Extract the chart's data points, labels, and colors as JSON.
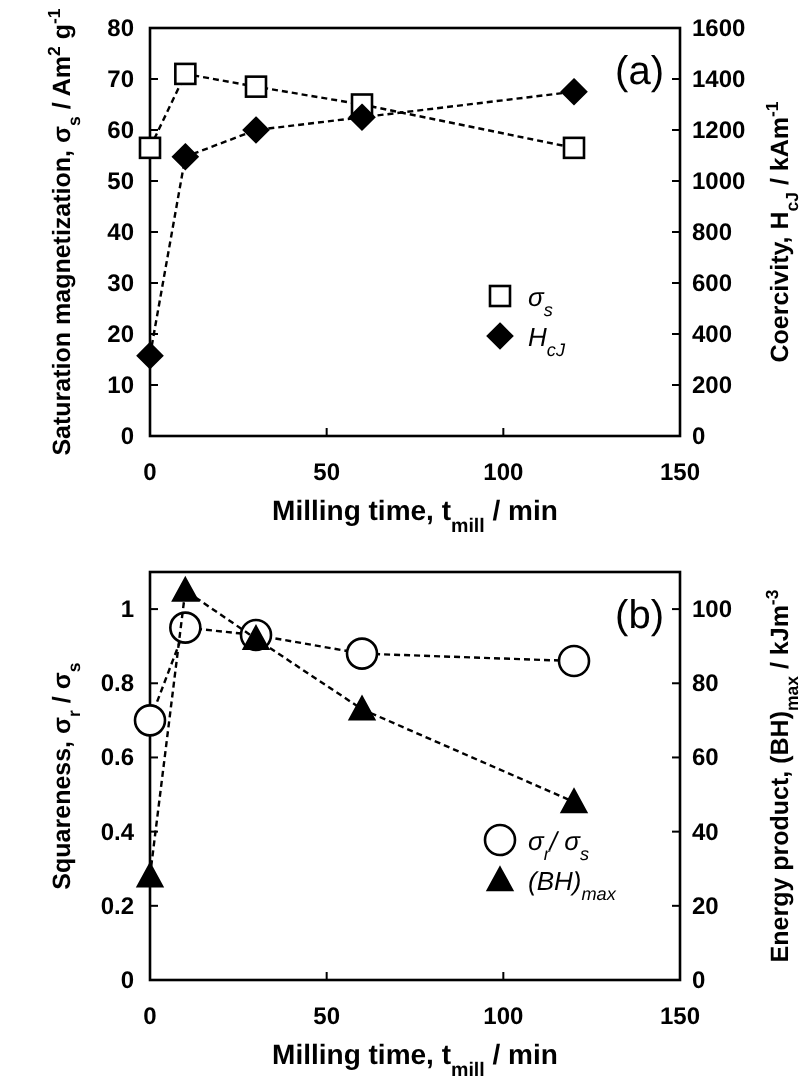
{
  "chart_data": [
    {
      "type": "line",
      "xlabel": "Milling time, t$_{mill}$ / min",
      "ylabel": "Saturation magnetization, σ$_{s}$ / Am$^{2}$ g$^{-1}$",
      "y2label": "Coercivity, H$_{cJ}$ / kAm$^{-1}$",
      "annotations": [
        "(a)"
      ],
      "x": [
        0,
        10,
        30,
        60,
        120
      ],
      "xlim": [
        0,
        150
      ],
      "xticks": [
        0,
        50,
        100,
        150
      ],
      "ylim": [
        0,
        80
      ],
      "yticks": [
        0,
        10,
        20,
        30,
        40,
        50,
        60,
        70,
        80
      ],
      "y2lim": [
        0,
        1600
      ],
      "y2ticks": [
        0,
        200,
        400,
        600,
        800,
        1000,
        1200,
        1400,
        1600
      ],
      "legend": "bottom right",
      "line_style": "dashed",
      "grid": false,
      "series": [
        {
          "name": "σ$_{s}$",
          "color": "#000000",
          "marker": "square",
          "values": [
            56.5,
            71,
            68.5,
            65,
            56.5
          ]
        },
        {
          "name": "H$_{cJ}$",
          "color": "#000000",
          "marker": "diamond",
          "axis": "y2",
          "values": [
            315,
            1095,
            1200,
            1250,
            1350
          ]
        }
      ]
    },
    {
      "type": "line",
      "xlabel": "Milling time, t$_{mill}$ / min",
      "ylabel": "Squareness, σ$_{r}$ / σ$_{s}$",
      "y2label": "Energy product, (BH)$_{max}$ / kJm$^{-3}$",
      "annotations": [
        "(b)"
      ],
      "x": [
        0,
        10,
        30,
        60,
        120
      ],
      "xlim": [
        0,
        150
      ],
      "xticks": [
        0,
        50,
        100,
        150
      ],
      "ylim": [
        0,
        1.1
      ],
      "yticks": [
        0,
        0.2,
        0.4,
        0.6,
        0.8,
        1
      ],
      "y2lim": [
        0,
        110
      ],
      "y2ticks": [
        0,
        20,
        40,
        60,
        80,
        100
      ],
      "legend": "bottom right",
      "line_style": "dashed",
      "grid": false,
      "series": [
        {
          "name": "σ$_{r}$/ σ$_{s}$",
          "color": "#000000",
          "marker": "circle",
          "values": [
            0.7,
            0.95,
            0.93,
            0.88,
            0.86
          ]
        },
        {
          "name": "(BH)$_{max}$",
          "color": "#000000",
          "marker": "triangle",
          "axis": "y2",
          "values": [
            28,
            105,
            92,
            73,
            48
          ]
        }
      ]
    }
  ]
}
